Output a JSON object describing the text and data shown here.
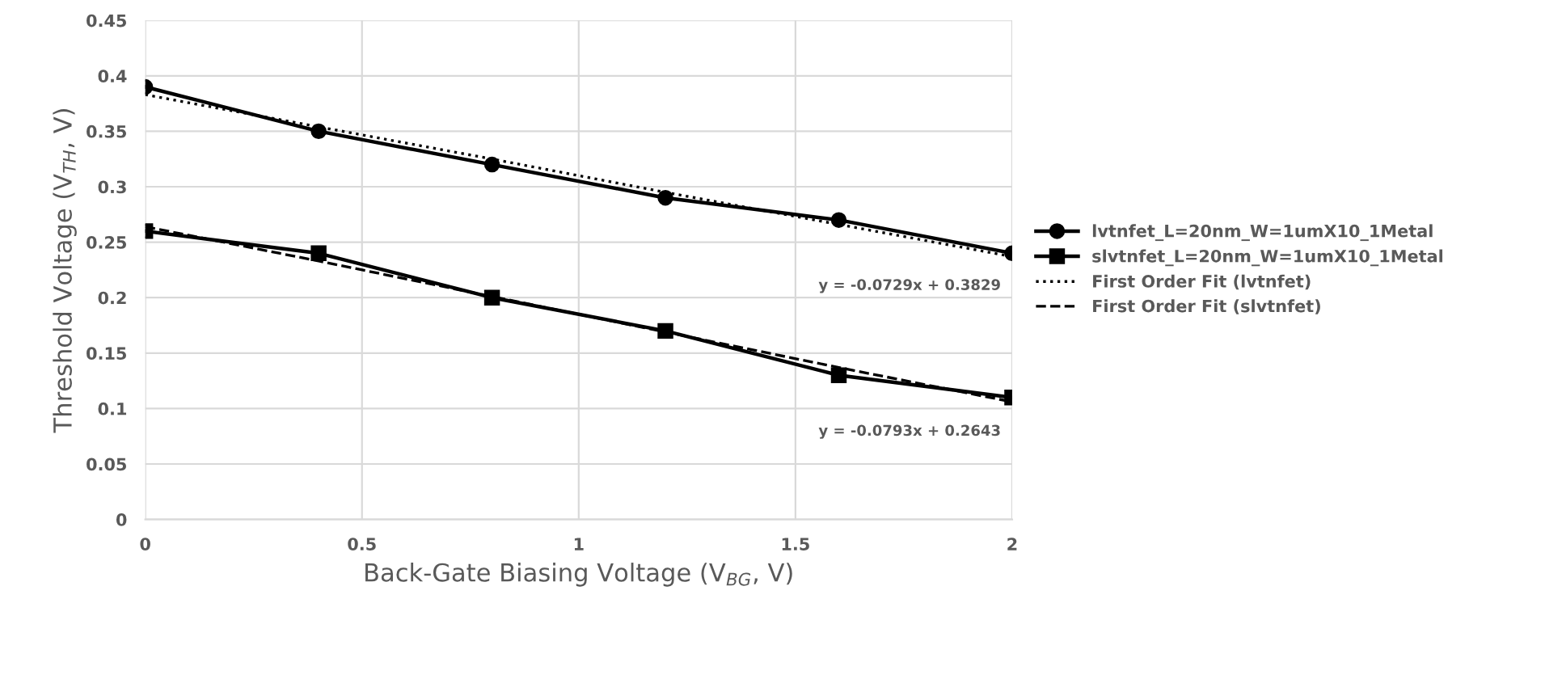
{
  "chart_data": {
    "type": "line",
    "xlabel": "Back-Gate Biasing Voltage (V$_{BG}$, V)",
    "ylabel": "Threshold Voltage (V$_{TH}$, V)",
    "x": [
      0,
      0.4,
      0.8,
      1.2,
      1.6,
      2
    ],
    "series": [
      {
        "name": "lvtnfet_L=20nm_W=1umX10_1Metal",
        "color": "#000000",
        "marker": "circle",
        "line_style": "solid",
        "values": [
          0.39,
          0.35,
          0.32,
          0.29,
          0.27,
          0.24
        ]
      },
      {
        "name": "slvtnfet_L=20nm_W=1umX10_1Metal",
        "color": "#000000",
        "marker": "square",
        "line_style": "solid",
        "values": [
          0.26,
          0.24,
          0.2,
          0.17,
          0.13,
          0.11
        ]
      },
      {
        "name": "First Order Fit (lvtnfet)",
        "color": "#000000",
        "marker": "none",
        "line_style": "dotted",
        "values": [
          0.383,
          0.354,
          0.325,
          0.295,
          0.266,
          0.237
        ]
      },
      {
        "name": "First Order Fit (slvtnfet)",
        "color": "#000000",
        "marker": "none",
        "line_style": "dashed",
        "values": [
          0.264,
          0.233,
          0.201,
          0.169,
          0.137,
          0.106
        ]
      }
    ],
    "annotations": [
      {
        "text": "y = -0.0729x + 0.3829",
        "x": 2,
        "y": 0.2371
      },
      {
        "text": "y = -0.0793x + 0.2643",
        "x": 2,
        "y": 0.1057
      }
    ],
    "xlim": [
      0,
      2
    ],
    "xticks": [
      0,
      0.5,
      1,
      1.5,
      2
    ],
    "ylim": [
      0,
      0.45
    ],
    "yticks": [
      0,
      0.05,
      0.1,
      0.15,
      0.2,
      0.25,
      0.3,
      0.35,
      0.4,
      0.45
    ],
    "grid": true,
    "legend": "right"
  }
}
